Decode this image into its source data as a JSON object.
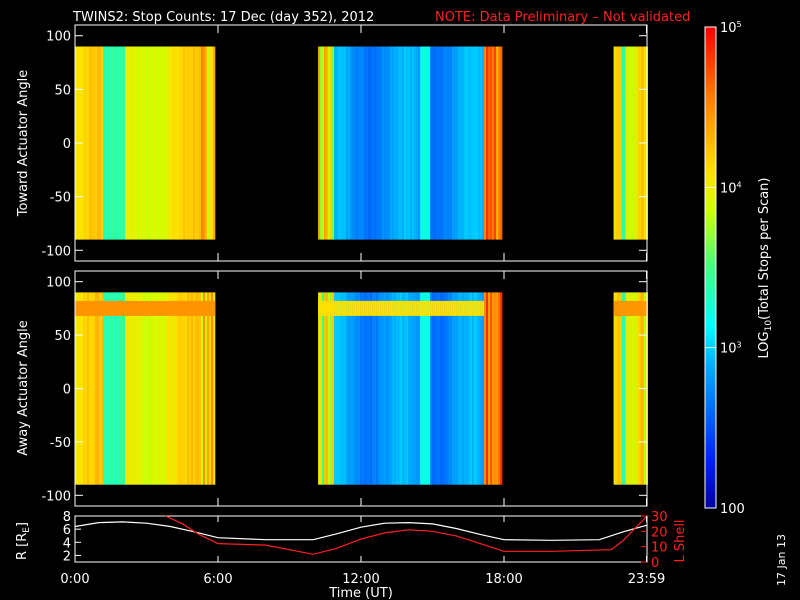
{
  "title": "TWINS2: Stop Counts: 17 Dec (day 352), 2012",
  "note": "NOTE: Data Preliminary – Not validated",
  "date_stamp": "17 Jan 13",
  "colors": {
    "background": "#000000",
    "foreground": "#ffffff",
    "note": "#ff2020",
    "lshell": "#ff2020"
  },
  "colorbar": {
    "label": "LOG10(Total Stops per Scan)",
    "label_main": "LOG",
    "label_sub": "10",
    "label_rest": "(Total Stops per Scan)",
    "ticks": [
      {
        "value": 100,
        "text": "100"
      },
      {
        "value": 1000,
        "text": "10",
        "sup": "3"
      },
      {
        "value": 10000,
        "text": "10",
        "sup": "4"
      },
      {
        "value": 100000,
        "text": "10",
        "sup": "5"
      }
    ],
    "range": [
      100,
      100000
    ],
    "scale": "log",
    "colormap": "rainbow (blue-cyan-green-yellow-red)"
  },
  "chart_data": [
    {
      "type": "heatmap",
      "panel": "toward",
      "ylabel": "Toward Actuator Angle",
      "ylim": [
        -110,
        110
      ],
      "yticks": [
        100,
        50,
        0,
        -50,
        -100
      ],
      "x_units": "hours UT",
      "xlim": [
        0,
        24
      ],
      "data_yrange": [
        -90,
        90
      ],
      "segments": [
        {
          "start": 0.0,
          "end": 5.85,
          "level": "high (~10^4)"
        },
        {
          "start": 10.2,
          "end": 17.9,
          "level": "low (~10^3)"
        },
        {
          "start": 22.6,
          "end": 23.98,
          "level": "high (~10^4)"
        }
      ]
    },
    {
      "type": "heatmap",
      "panel": "away",
      "ylabel": "Away Actuator Angle",
      "ylim": [
        -110,
        110
      ],
      "yticks": [
        100,
        50,
        0,
        -50,
        -100
      ],
      "x_units": "hours UT",
      "xlim": [
        0,
        24
      ],
      "data_yrange": [
        -90,
        90
      ],
      "segments": [
        {
          "start": 0.0,
          "end": 5.85,
          "level": "high (~10^4)"
        },
        {
          "start": 10.2,
          "end": 17.9,
          "level": "low (~10^3)"
        },
        {
          "start": 22.6,
          "end": 23.98,
          "level": "high (~10^4)"
        }
      ]
    },
    {
      "type": "line",
      "panel": "ephemeris",
      "ylabel": "R [RE]",
      "ylabel_main": "R [R",
      "ylabel_sub": "E",
      "ylabel_end": "]",
      "y2label": "L Shell",
      "xlabel": "Time (UT)",
      "ylim": [
        1,
        8
      ],
      "yticks": [
        8,
        6,
        4,
        2
      ],
      "y2lim": [
        0,
        30
      ],
      "y2ticks": [
        30,
        20,
        10,
        0
      ],
      "xlim": [
        0,
        24
      ],
      "xticks": [
        {
          "value": 0,
          "text": "0:00"
        },
        {
          "value": 6,
          "text": "6:00"
        },
        {
          "value": 12,
          "text": "12:00"
        },
        {
          "value": 18,
          "text": "18:00"
        },
        {
          "value": 23.98,
          "text": "23:59"
        }
      ],
      "series": [
        {
          "name": "R",
          "axis": "left",
          "x": [
            0,
            1,
            2,
            3,
            4,
            5,
            6,
            8,
            10,
            11,
            12,
            13,
            14,
            15,
            16,
            17,
            18,
            20,
            22,
            23,
            24
          ],
          "y": [
            6.4,
            7.0,
            7.1,
            6.9,
            6.4,
            5.6,
            4.7,
            4.4,
            4.4,
            5.3,
            6.3,
            6.9,
            7.0,
            6.8,
            6.1,
            5.2,
            4.4,
            4.3,
            4.4,
            5.6,
            6.6
          ]
        },
        {
          "name": "L Shell",
          "axis": "right",
          "x": [
            3.8,
            4.5,
            5.2,
            6.0,
            8.0,
            10.0,
            11.0,
            12.0,
            13.0,
            14.0,
            15.0,
            16.0,
            17.0,
            18.0,
            20.0,
            22.5,
            23.0,
            24.0
          ],
          "y": [
            31,
            25,
            18,
            12,
            11,
            5,
            9,
            15,
            19,
            21,
            20,
            17,
            12,
            7,
            7,
            8,
            14,
            30
          ]
        }
      ]
    }
  ]
}
